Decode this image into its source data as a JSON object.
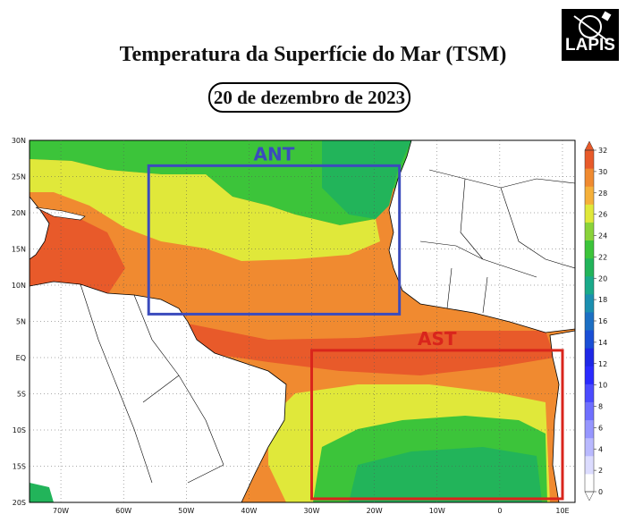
{
  "header": {
    "title": "Temperatura da Superfície do Mar (TSM)",
    "date": "20 de dezembro de 2023",
    "logo_text": "LAPIS"
  },
  "map": {
    "lat_labels": [
      "30N",
      "25N",
      "20N",
      "15N",
      "10N",
      "5N",
      "EQ",
      "5S",
      "10S",
      "15S",
      "20S"
    ],
    "lon_labels": [
      "70W",
      "60W",
      "50W",
      "40W",
      "30W",
      "20W",
      "10W",
      "0",
      "10E"
    ],
    "regions": [
      {
        "label": "ANT",
        "color": "#3b4bbd",
        "lon": [
          -56,
          -16
        ],
        "lat": [
          6,
          26.5
        ]
      },
      {
        "label": "AST",
        "color": "#d9251c",
        "lon": [
          -30,
          10
        ],
        "lat": [
          -19.5,
          1
        ]
      }
    ],
    "colorbar": {
      "ticks": [
        "32",
        "30",
        "28",
        "26",
        "24",
        "22",
        "20",
        "18",
        "16",
        "14",
        "12",
        "10",
        "8",
        "6",
        "4",
        "2",
        "0"
      ],
      "colors": [
        "#ffffff",
        "#dcdcff",
        "#b9b9ff",
        "#9696ff",
        "#6f6fff",
        "#4b4bff",
        "#2a2aff",
        "#1e28e6",
        "#1a4fd6",
        "#1c6fc4",
        "#1b8fb0",
        "#1aaa8a",
        "#22b45a",
        "#3cc43a",
        "#8ad33a",
        "#e0e83a",
        "#f5b03a",
        "#f08a30",
        "#e85a2a"
      ]
    }
  }
}
